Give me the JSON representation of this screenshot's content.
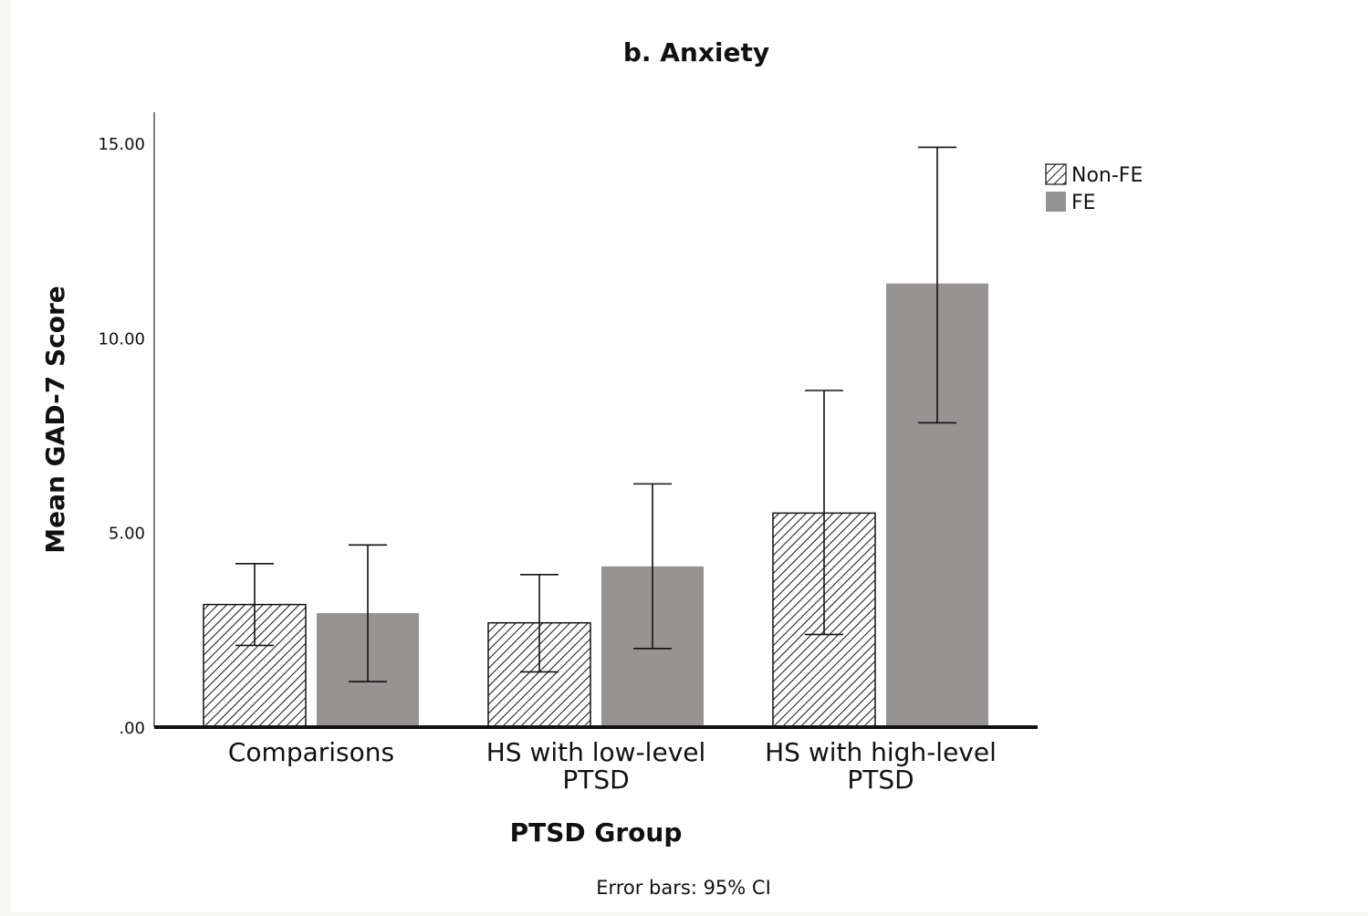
{
  "chart_data": {
    "type": "bar",
    "title": "b. Anxiety",
    "xlabel": "PTSD Group",
    "ylabel": "Mean GAD-7 Score",
    "footnote": "Error bars: 95% CI",
    "categories": [
      "Comparisons",
      "HS with low-level PTSD",
      "HS with high-level PTSD"
    ],
    "category_label_lines": [
      [
        "Comparisons"
      ],
      [
        "HS with low-level",
        "PTSD"
      ],
      [
        "HS with high-level",
        "PTSD"
      ]
    ],
    "ylim": [
      0,
      15.8
    ],
    "yticks": [
      0,
      5,
      10,
      15
    ],
    "ytick_labels": [
      ".00",
      "5.00",
      "10.00",
      "15.00"
    ],
    "grid": false,
    "legend_position": "top-right",
    "series": [
      {
        "name": "Non-FE",
        "fill": "hatched",
        "color": "#ffffff",
        "values": [
          3.15,
          2.68,
          5.5
        ],
        "ci_lower": [
          2.1,
          1.42,
          2.38
        ],
        "ci_upper": [
          4.2,
          3.92,
          8.65
        ]
      },
      {
        "name": "FE",
        "fill": "solid",
        "color": "#979392",
        "values": [
          2.93,
          4.13,
          11.4
        ],
        "ci_lower": [
          1.17,
          2.02,
          7.82
        ],
        "ci_upper": [
          4.68,
          6.25,
          14.9
        ]
      }
    ]
  }
}
